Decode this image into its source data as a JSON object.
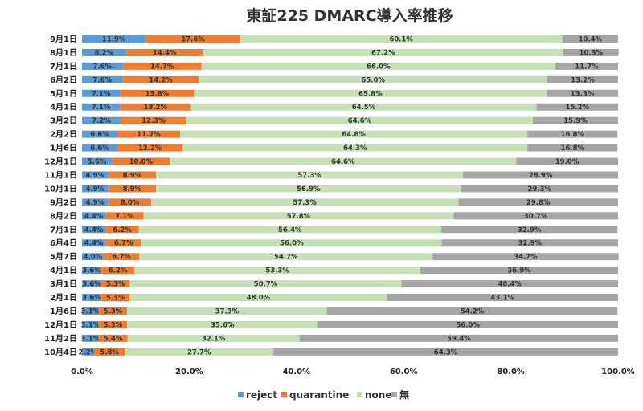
{
  "chart_data": {
    "type": "bar",
    "orientation": "horizontal",
    "stacked": "percent",
    "title": "東証225 DMARC導入率推移",
    "xlim": [
      0,
      100
    ],
    "x_ticks": [
      "0.0%",
      "20.0%",
      "40.0%",
      "60.0%",
      "80.0%",
      "100.0%"
    ],
    "grid": false,
    "legend_position": "bottom",
    "categories": [
      "9月1日",
      "8月1日",
      "7月1日",
      "6月2日",
      "5月1日",
      "4月1日",
      "3月2日",
      "2月2日",
      "1月6日",
      "12月1日",
      "11月1日",
      "10月1日",
      "9月2日",
      "8月2日",
      "7月1日",
      "6月4日",
      "5月7日",
      "4月1日",
      "3月1日",
      "2月1日",
      "1月6日",
      "12月1日",
      "11月2日",
      "10月4日"
    ],
    "series": [
      {
        "name": "reject",
        "color": "#5B9BD5",
        "values": [
          11.9,
          8.2,
          7.6,
          7.6,
          7.1,
          7.1,
          7.2,
          6.6,
          6.6,
          5.6,
          4.9,
          4.9,
          4.9,
          4.4,
          4.4,
          4.4,
          4.0,
          3.6,
          3.6,
          3.6,
          3.1,
          3.1,
          3.1,
          2.2
        ]
      },
      {
        "name": "quarantine",
        "color": "#ED7D31",
        "values": [
          17.6,
          14.4,
          14.7,
          14.2,
          13.8,
          13.2,
          12.3,
          11.7,
          12.2,
          10.8,
          8.9,
          8.9,
          8.0,
          7.1,
          6.2,
          6.7,
          6.7,
          6.2,
          5.3,
          5.3,
          5.3,
          5.3,
          5.4,
          5.8
        ]
      },
      {
        "name": "none",
        "color": "#C5E0B4",
        "values": [
          60.1,
          67.2,
          66.0,
          65.0,
          65.8,
          64.5,
          64.6,
          64.8,
          64.3,
          64.6,
          57.3,
          56.9,
          57.3,
          57.8,
          56.4,
          56.0,
          54.7,
          53.3,
          50.7,
          48.0,
          37.3,
          35.6,
          32.1,
          27.7
        ]
      },
      {
        "name": "無",
        "color": "#A5A5A5",
        "values": [
          10.4,
          10.3,
          11.7,
          13.2,
          13.3,
          15.2,
          15.9,
          16.8,
          16.8,
          19.0,
          28.9,
          29.3,
          29.8,
          30.7,
          32.9,
          32.9,
          34.7,
          36.9,
          40.4,
          43.1,
          54.2,
          56.0,
          59.4,
          64.3
        ]
      }
    ]
  }
}
